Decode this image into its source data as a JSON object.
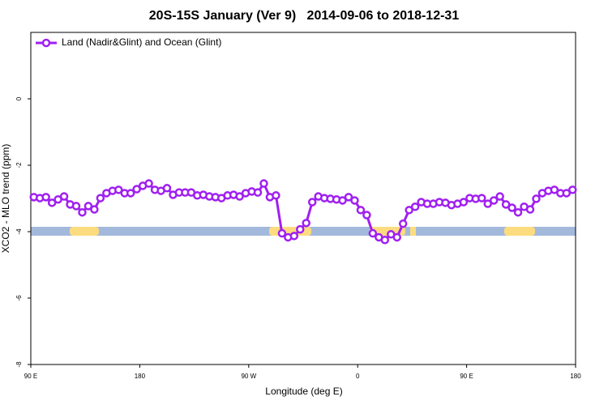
{
  "chart_data": {
    "type": "line",
    "title": "20S-15S January (Ver 9)   2014-09-06 to 2018-12-31",
    "x_label": "Longitude (deg E)",
    "y_label": "XCO2 - MLO trend (ppm)",
    "xlim": [
      90,
      540
    ],
    "xticks": [
      {
        "value": 90,
        "label": "90 E"
      },
      {
        "value": 180,
        "label": "180"
      },
      {
        "value": 270,
        "label": "90 W"
      },
      {
        "value": 360,
        "label": "0"
      },
      {
        "value": 450,
        "label": "90 E"
      },
      {
        "value": 540,
        "label": "180"
      }
    ],
    "ylim": [
      -8,
      2
    ],
    "yticks": [
      -8,
      -6,
      -4,
      -2,
      0
    ],
    "legend": "top-left",
    "x": [
      92.5,
      97.5,
      102.5,
      107.5,
      112.5,
      117.5,
      122.5,
      127.5,
      132.5,
      137.5,
      142.5,
      147.5,
      152.5,
      157.5,
      162.5,
      167.5,
      172.5,
      177.5,
      182.5,
      187.5,
      192.5,
      197.5,
      202.5,
      207.5,
      212.5,
      217.5,
      222.5,
      227.5,
      232.5,
      237.5,
      242.5,
      247.5,
      252.5,
      257.5,
      262.5,
      267.5,
      272.5,
      277.5,
      282.5,
      287.5,
      292.5,
      297.5,
      302.5,
      307.5,
      312.5,
      317.5,
      322.5,
      327.5,
      332.5,
      337.5,
      342.5,
      347.5,
      352.5,
      357.5,
      362.5,
      367.5,
      372.5,
      377.5,
      382.5,
      387.5,
      392.5,
      397.5,
      402.5,
      407.5,
      412.5,
      417.5,
      422.5,
      427.5,
      432.5,
      437.5,
      442.5,
      447.5,
      452.5,
      457.5,
      462.5,
      467.5,
      472.5,
      477.5,
      482.5,
      487.5,
      492.5,
      497.5,
      502.5,
      507.5,
      512.5,
      517.5,
      522.5,
      527.5,
      532.5,
      537.5
    ],
    "series": [
      {
        "name": "Land (Nadir&Glint) and Ocean (Glint)",
        "color": "#a020f0",
        "values": [
          -2.96,
          -2.99,
          -2.96,
          -3.13,
          -3.03,
          -2.94,
          -3.18,
          -3.23,
          -3.42,
          -3.23,
          -3.33,
          -2.99,
          -2.84,
          -2.77,
          -2.74,
          -2.84,
          -2.84,
          -2.72,
          -2.62,
          -2.55,
          -2.74,
          -2.77,
          -2.69,
          -2.89,
          -2.82,
          -2.82,
          -2.82,
          -2.91,
          -2.89,
          -2.94,
          -2.96,
          -2.99,
          -2.91,
          -2.89,
          -2.94,
          -2.84,
          -2.79,
          -2.82,
          -2.55,
          -2.96,
          -2.91,
          -4.05,
          -4.17,
          -4.13,
          -3.93,
          -3.74,
          -3.11,
          -2.94,
          -2.99,
          -3.01,
          -3.03,
          -3.06,
          -2.96,
          -3.06,
          -3.35,
          -3.5,
          -4.05,
          -4.17,
          -4.25,
          -4.08,
          -4.17,
          -3.76,
          -3.35,
          -3.25,
          -3.11,
          -3.16,
          -3.16,
          -3.11,
          -3.13,
          -3.2,
          -3.16,
          -3.11,
          -2.99,
          -3.01,
          -2.99,
          -3.16,
          -3.06,
          -2.94,
          -3.18,
          -3.28,
          -3.42,
          -3.25,
          -3.33,
          -3.01,
          -2.84,
          -2.77,
          -2.74,
          -2.84,
          -2.84,
          -2.74
        ]
      }
    ]
  }
}
